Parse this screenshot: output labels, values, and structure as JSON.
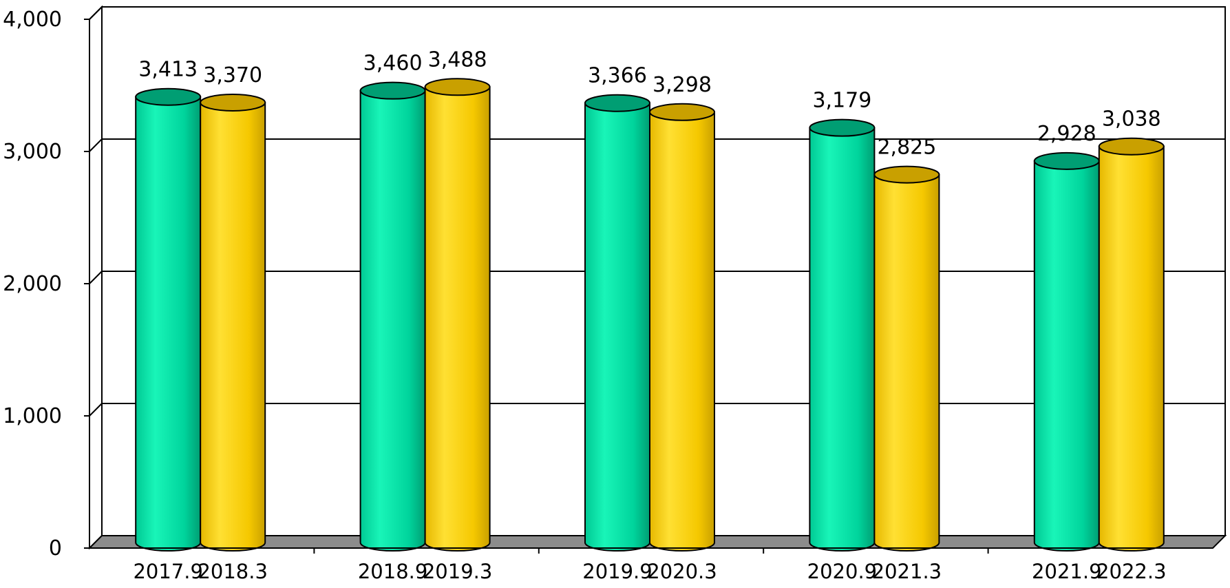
{
  "chart_data": {
    "type": "bar",
    "style": "3d-cylinder",
    "title": "",
    "xlabel": "",
    "ylabel": "",
    "ylim": [
      0,
      4000
    ],
    "yticks": [
      0,
      1000,
      2000,
      3000,
      4000
    ],
    "ytick_labels": [
      "0",
      "1,000",
      "2,000",
      "3,000",
      "4,000"
    ],
    "grid": true,
    "legend": "none",
    "groups": [
      {
        "bars": [
          {
            "label": "2017.9",
            "value": 3413,
            "value_label": "3,413",
            "color": "green"
          },
          {
            "label": "2018.3",
            "value": 3370,
            "value_label": "3,370",
            "color": "yellow"
          }
        ]
      },
      {
        "bars": [
          {
            "label": "2018.9",
            "value": 3460,
            "value_label": "3,460",
            "color": "green"
          },
          {
            "label": "2019.3",
            "value": 3488,
            "value_label": "3,488",
            "color": "yellow"
          }
        ]
      },
      {
        "bars": [
          {
            "label": "2019.9",
            "value": 3366,
            "value_label": "3,366",
            "color": "green"
          },
          {
            "label": "2020.3",
            "value": 3298,
            "value_label": "3,298",
            "color": "yellow"
          }
        ]
      },
      {
        "bars": [
          {
            "label": "2020.9",
            "value": 3179,
            "value_label": "3,179",
            "color": "green"
          },
          {
            "label": "2021.3",
            "value": 2825,
            "value_label": "2,825",
            "color": "yellow"
          }
        ]
      },
      {
        "bars": [
          {
            "label": "2021.9",
            "value": 2928,
            "value_label": "2,928",
            "color": "green"
          },
          {
            "label": "2022.3",
            "value": 3038,
            "value_label": "3,038",
            "color": "yellow"
          }
        ]
      }
    ],
    "colors": {
      "green": "#00e5a8",
      "green_dark": "#009e73",
      "yellow": "#ffd400",
      "yellow_dark": "#c9a000",
      "floor": "#8c8c8c",
      "grid": "#000000"
    }
  }
}
